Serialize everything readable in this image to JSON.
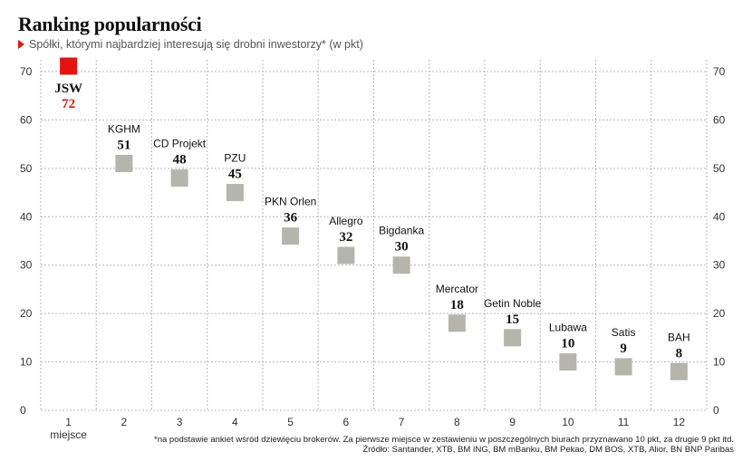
{
  "chart_data": {
    "type": "scatter",
    "title": "Ranking popularności",
    "subtitle": "Spółki, którymi najbardziej interesują się drobni inwestorzy* (w pkt)",
    "x": [
      1,
      2,
      3,
      4,
      5,
      6,
      7,
      8,
      9,
      10,
      11,
      12
    ],
    "xlabel": "miejsce",
    "ylim": [
      0,
      70
    ],
    "yticks": [
      0,
      10,
      20,
      30,
      40,
      50,
      60,
      70
    ],
    "grid": true,
    "points": [
      {
        "rank": 1,
        "name": "JSW",
        "value": 72
      },
      {
        "rank": 2,
        "name": "KGHM",
        "value": 51
      },
      {
        "rank": 3,
        "name": "CD Projekt",
        "value": 48
      },
      {
        "rank": 4,
        "name": "PZU",
        "value": 45
      },
      {
        "rank": 5,
        "name": "PKN Orlen",
        "value": 36
      },
      {
        "rank": 6,
        "name": "Allegro",
        "value": 32
      },
      {
        "rank": 7,
        "name": "Bigdanka",
        "value": 30
      },
      {
        "rank": 8,
        "name": "Mercator",
        "value": 18
      },
      {
        "rank": 9,
        "name": "Getin Noble",
        "value": 15
      },
      {
        "rank": 10,
        "name": "Lubawa",
        "value": 10
      },
      {
        "rank": 11,
        "name": "Satis",
        "value": 9
      },
      {
        "rank": 12,
        "name": "BAH",
        "value": 8
      }
    ],
    "colors": {
      "highlight": "#e3140f",
      "marker": "#b5b5ab",
      "grid": "#b8b8b8",
      "accent": "#e3140f"
    }
  },
  "footnote": {
    "line1": "*na podstawie ankiet wśród dziewięciu brokerów. Za pierwsze miejsce w zestawieniu w poszczególnych biurach przyznawano 10 pkt, za drugie 9 pkt itd.",
    "line2": "Źródło: Santander, XTB, BM ING, BM mBanku, BM Pekao, DM BOS, XTB, Alior, BN BNP Paribas"
  }
}
